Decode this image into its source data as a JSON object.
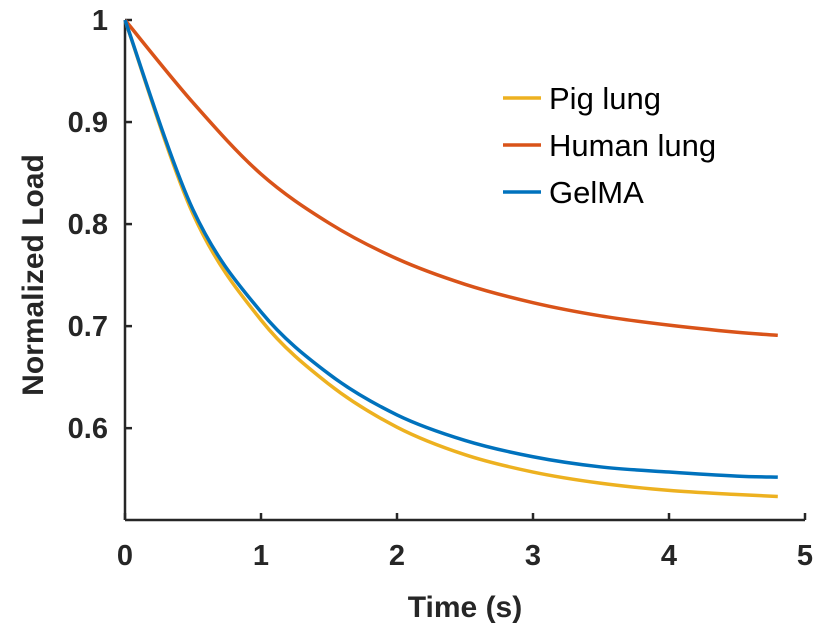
{
  "chart_data": {
    "type": "line",
    "title": "",
    "xlabel": "Time (s)",
    "ylabel": "Normalized Load",
    "xlim": [
      0,
      5
    ],
    "ylim": [
      0.51,
      1.0
    ],
    "xticks": [
      0,
      1,
      2,
      3,
      4,
      5
    ],
    "yticks": [
      0.6,
      0.7,
      0.8,
      0.9,
      1
    ],
    "xtick_labels": [
      "0",
      "1",
      "2",
      "3",
      "4",
      "5"
    ],
    "ytick_labels": [
      "0.6",
      "0.7",
      "0.8",
      "0.9",
      "1"
    ],
    "grid": false,
    "legend_position": "top-right",
    "x": [
      0,
      0.5,
      1,
      1.5,
      2,
      2.5,
      3,
      3.5,
      4,
      4.5,
      4.8
    ],
    "series": [
      {
        "name": "Pig lung",
        "color": "#EDB120",
        "values": [
          1.0,
          0.81,
          0.706,
          0.643,
          0.601,
          0.574,
          0.557,
          0.546,
          0.539,
          0.535,
          0.533
        ]
      },
      {
        "name": "Human lung",
        "color": "#D95319",
        "values": [
          1.0,
          0.919,
          0.849,
          0.801,
          0.766,
          0.741,
          0.723,
          0.71,
          0.701,
          0.694,
          0.691
        ]
      },
      {
        "name": "GelMA",
        "color": "#0072BD",
        "values": [
          1.0,
          0.814,
          0.714,
          0.653,
          0.613,
          0.588,
          0.572,
          0.562,
          0.557,
          0.553,
          0.552
        ]
      }
    ]
  }
}
